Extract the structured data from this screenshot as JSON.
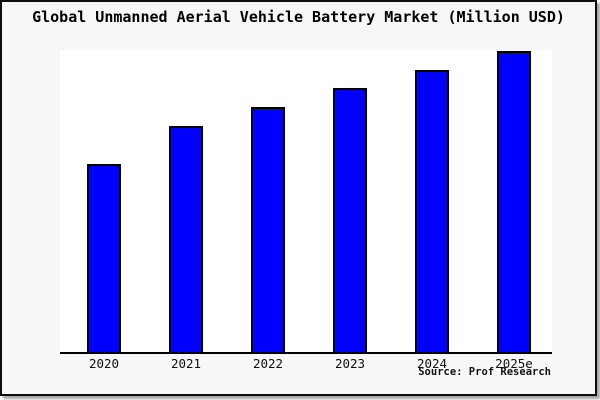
{
  "chart": {
    "title": "Global Unmanned Aerial Vehicle Battery Market (Million USD)",
    "source": "Source: Prof Research"
  },
  "chart_data": {
    "type": "bar",
    "title": "Global Unmanned Aerial Vehicle Battery Market (Million USD)",
    "categories": [
      "2020",
      "2021",
      "2022",
      "2023",
      "2024",
      "2025e"
    ],
    "values": [
      188,
      226,
      245,
      264,
      282,
      301
    ],
    "ylim": [
      0,
      302
    ],
    "xlabel": "",
    "ylabel": "",
    "grid": false,
    "legend": false,
    "y_axis_visible": false,
    "value_labels_visible": false,
    "values_note": "no numeric scale shown in image; values are relative bar heights (pixels)",
    "bar_color": "#0000ff",
    "bar_border_color": "#000000",
    "plot_background": "#ffffff",
    "canvas_background": "#f7f7f7",
    "frame_border_color": "#0d0d0d",
    "source": "Source: Prof Research"
  }
}
